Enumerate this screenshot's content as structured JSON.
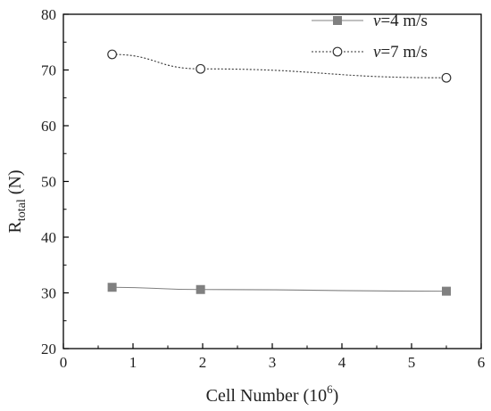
{
  "chart_data": {
    "type": "line",
    "title": "",
    "xlabel": {
      "main": "Cell Number (10",
      "sup": "6",
      "close": ")"
    },
    "ylabel": {
      "main": "R",
      "sub": "total",
      "unit": " (N)"
    },
    "xlim": [
      0,
      6
    ],
    "ylim": [
      20,
      80
    ],
    "xticks": [
      "0",
      "1",
      "2",
      "3",
      "4",
      "5",
      "6"
    ],
    "yticks": [
      "20",
      "30",
      "40",
      "50",
      "60",
      "70",
      "80"
    ],
    "grid": false,
    "legend_position": "top-right",
    "series": [
      {
        "name_var": "v",
        "name_rest": "=4 m/s",
        "marker": "filled-square",
        "line": "solid",
        "color": "#808080",
        "x": [
          0.7,
          1.97,
          5.5
        ],
        "y": [
          31.0,
          30.6,
          30.3
        ]
      },
      {
        "name_var": "v",
        "name_rest": "=7 m/s",
        "marker": "open-circle",
        "line": "dotted",
        "color": "#333333",
        "x": [
          0.7,
          1.97,
          5.5
        ],
        "y": [
          72.8,
          70.2,
          68.6
        ]
      }
    ]
  }
}
